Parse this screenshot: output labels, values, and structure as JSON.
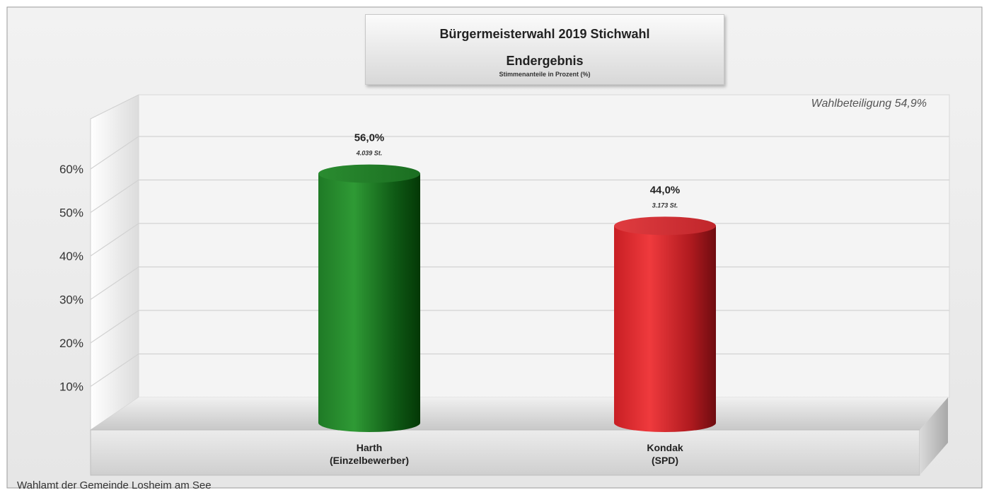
{
  "chart_data": {
    "type": "bar",
    "title": "Bürgermeisterwahl 2019 Stichwahl",
    "title_line2": "Endergebnis",
    "subtitle": "Stimmenanteile in Prozent (%)",
    "annotation": "Wahlbeteiligung 54,9%",
    "categories": [
      "Harth\n(Einzelbewerber)",
      "Kondak\n(SPD)"
    ],
    "category_lines": [
      [
        "Harth",
        "(Einzelbewerber)"
      ],
      [
        "Kondak",
        "(SPD)"
      ]
    ],
    "values": [
      56.0,
      44.0
    ],
    "value_labels": [
      "56,0%",
      "44,0%"
    ],
    "vote_labels": [
      "4.039 St.",
      "3.173 St."
    ],
    "colors": [
      "#1e8a2c",
      "#e0262b"
    ],
    "y_ticks": [
      10,
      20,
      30,
      40,
      50,
      60
    ],
    "y_tick_labels": [
      "10%",
      "20%",
      "30%",
      "40%",
      "50%",
      "60%"
    ],
    "ylim": [
      0,
      70
    ],
    "grid": true,
    "legend": "none"
  },
  "footer": "Wahlamt der Gemeinde Losheim am See"
}
